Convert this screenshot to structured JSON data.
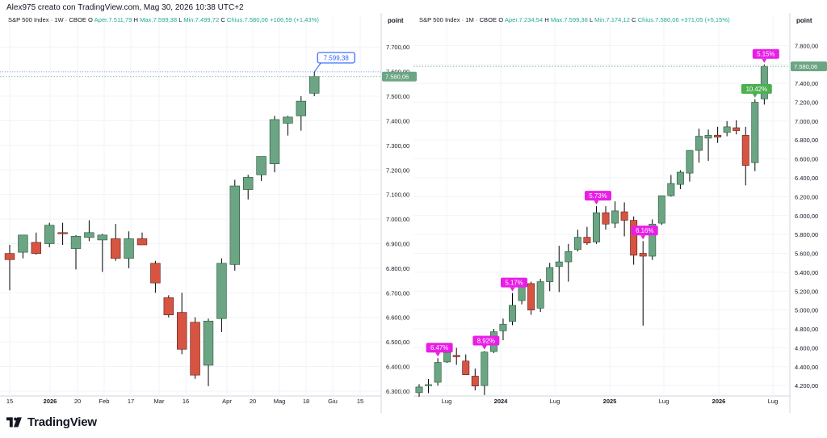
{
  "header": {
    "text": "Alex975 creato con TradingView.com, Mag 30, 2026 10:38 UTC+2"
  },
  "brand": {
    "text": "TradingView"
  },
  "colors": {
    "up": "#6ba583",
    "down": "#d75442",
    "up_border": "#225437",
    "down_border": "#5b1a13",
    "label_magenta": "#e91ee6",
    "label_green": "#4caf50",
    "price_tag": "#6ba583",
    "highlight_blue": "#2962ff"
  },
  "chart_data": [
    {
      "type": "candlestick",
      "title": "S&P 500 Index · 1W · CBOE",
      "ohlc_line": {
        "open_label": "O",
        "open": "Aper.7.511,79",
        "high_label": "H",
        "high": "Max.7.599,38",
        "low_label": "L",
        "low": "Min.7.499,72",
        "close_label": "C",
        "close": "Chius.7.580,06",
        "change": "+106,59 (+1,43%)"
      },
      "axis_title": "point",
      "y_ticks": [
        "7.700,00",
        "7.600,00",
        "7.500,00",
        "7.400,00",
        "7.300,00",
        "7.200,00",
        "7.100,00",
        "7.000,00",
        "6.900,00",
        "6.800,00",
        "6.700,00",
        "6.600,00",
        "6.500,00",
        "6.400,00",
        "6.300,00"
      ],
      "ylim": [
        6280,
        7760
      ],
      "x_ticks": [
        "15",
        "2026",
        "20",
        "Feb",
        "17",
        "Mar",
        "16",
        "Apr",
        "20",
        "Mag",
        "18",
        "Giu",
        "15"
      ],
      "candles": [
        {
          "o": 6860,
          "h": 6895,
          "l": 6710,
          "c": 6835
        },
        {
          "o": 6865,
          "h": 6935,
          "l": 6840,
          "c": 6935
        },
        {
          "o": 6905,
          "h": 6945,
          "l": 6855,
          "c": 6860
        },
        {
          "o": 6900,
          "h": 6985,
          "l": 6885,
          "c": 6975
        },
        {
          "o": 6945,
          "h": 6985,
          "l": 6895,
          "c": 6940
        },
        {
          "o": 6880,
          "h": 6935,
          "l": 6795,
          "c": 6930
        },
        {
          "o": 6925,
          "h": 6995,
          "l": 6910,
          "c": 6945
        },
        {
          "o": 6915,
          "h": 6940,
          "l": 6785,
          "c": 6935
        },
        {
          "o": 6920,
          "h": 6980,
          "l": 6830,
          "c": 6840
        },
        {
          "o": 6840,
          "h": 6950,
          "l": 6800,
          "c": 6920
        },
        {
          "o": 6920,
          "h": 6945,
          "l": 6895,
          "c": 6895
        },
        {
          "o": 6820,
          "h": 6830,
          "l": 6700,
          "c": 6740
        },
        {
          "o": 6680,
          "h": 6690,
          "l": 6600,
          "c": 6610
        },
        {
          "o": 6620,
          "h": 6700,
          "l": 6450,
          "c": 6470
        },
        {
          "o": 6580,
          "h": 6600,
          "l": 6350,
          "c": 6365
        },
        {
          "o": 6405,
          "h": 6595,
          "l": 6320,
          "c": 6585
        },
        {
          "o": 6595,
          "h": 6840,
          "l": 6540,
          "c": 6820
        },
        {
          "o": 6815,
          "h": 7160,
          "l": 6790,
          "c": 7135
        },
        {
          "o": 7120,
          "h": 7180,
          "l": 7080,
          "c": 7170
        },
        {
          "o": 7180,
          "h": 7255,
          "l": 7155,
          "c": 7255
        },
        {
          "o": 7225,
          "h": 7420,
          "l": 7190,
          "c": 7405
        },
        {
          "o": 7390,
          "h": 7420,
          "l": 7340,
          "c": 7415
        },
        {
          "o": 7420,
          "h": 7500,
          "l": 7360,
          "c": 7480
        },
        {
          "o": 7512,
          "h": 7599,
          "l": 7500,
          "c": 7580
        }
      ],
      "price_label": "7.580,06",
      "marker_label": "7.599,38"
    },
    {
      "type": "candlestick",
      "title": "S&P 500 Index · 1M · CBOE",
      "ohlc_line": {
        "open_label": "O",
        "open": "Aper.7.234,54",
        "high_label": "H",
        "high": "Max.7.599,38",
        "low_label": "L",
        "low": "Min.7.174,12",
        "close_label": "C",
        "close": "Chius.7.580,06",
        "change": "+371,05 (+5,15%)"
      },
      "axis_title": "point",
      "y_ticks": [
        "7.800,00",
        "7.600,00",
        "7.400,00",
        "7.200,00",
        "7.000,00",
        "6.800,00",
        "6.600,00",
        "6.400,00",
        "6.200,00",
        "6.000,00",
        "5.800,00",
        "5.600,00",
        "5.400,00",
        "5.200,00",
        "5.000,00",
        "4.800,00",
        "4.600,00",
        "4.400,00",
        "4.200,00"
      ],
      "ylim": [
        4090,
        7940
      ],
      "x_ticks": [
        "Lug",
        "2024",
        "Lug",
        "2025",
        "Lug",
        "2026",
        "Lug"
      ],
      "candles": [
        {
          "o": 4125,
          "h": 4215,
          "l": 4080,
          "c": 4185
        },
        {
          "o": 4200,
          "h": 4270,
          "l": 4120,
          "c": 4210
        },
        {
          "o": 4235,
          "h": 4490,
          "l": 4200,
          "c": 4445
        },
        {
          "o": 4450,
          "h": 4575,
          "l": 4440,
          "c": 4550
        },
        {
          "o": 4520,
          "h": 4600,
          "l": 4420,
          "c": 4505
        },
        {
          "o": 4460,
          "h": 4530,
          "l": 4330,
          "c": 4315
        },
        {
          "o": 4300,
          "h": 4380,
          "l": 4150,
          "c": 4195
        },
        {
          "o": 4200,
          "h": 4565,
          "l": 4100,
          "c": 4555
        },
        {
          "o": 4560,
          "h": 4800,
          "l": 4545,
          "c": 4770
        },
        {
          "o": 4780,
          "h": 4910,
          "l": 4680,
          "c": 4850
        },
        {
          "o": 4880,
          "h": 5180,
          "l": 4840,
          "c": 5050
        },
        {
          "o": 5100,
          "h": 5280,
          "l": 5060,
          "c": 5270
        },
        {
          "o": 5280,
          "h": 5300,
          "l": 4950,
          "c": 5000
        },
        {
          "o": 5020,
          "h": 5330,
          "l": 4980,
          "c": 5300
        },
        {
          "o": 5300,
          "h": 5500,
          "l": 5200,
          "c": 5450
        },
        {
          "o": 5460,
          "h": 5680,
          "l": 5190,
          "c": 5510
        },
        {
          "o": 5510,
          "h": 5700,
          "l": 5300,
          "c": 5620
        },
        {
          "o": 5640,
          "h": 5850,
          "l": 5620,
          "c": 5770
        },
        {
          "o": 5770,
          "h": 5880,
          "l": 5690,
          "c": 5710
        },
        {
          "o": 5720,
          "h": 6100,
          "l": 5700,
          "c": 6030
        },
        {
          "o": 6030,
          "h": 6100,
          "l": 5850,
          "c": 5910
        },
        {
          "o": 5920,
          "h": 6150,
          "l": 5870,
          "c": 6050
        },
        {
          "o": 6040,
          "h": 6140,
          "l": 5780,
          "c": 5950
        },
        {
          "o": 5950,
          "h": 5990,
          "l": 5480,
          "c": 5580
        },
        {
          "o": 5600,
          "h": 5730,
          "l": 4835,
          "c": 5570
        },
        {
          "o": 5570,
          "h": 5960,
          "l": 5530,
          "c": 5910
        },
        {
          "o": 5920,
          "h": 6200,
          "l": 5900,
          "c": 6210
        },
        {
          "o": 6210,
          "h": 6430,
          "l": 6200,
          "c": 6340
        },
        {
          "o": 6330,
          "h": 6480,
          "l": 6280,
          "c": 6460
        },
        {
          "o": 6450,
          "h": 6690,
          "l": 6360,
          "c": 6690
        },
        {
          "o": 6690,
          "h": 6920,
          "l": 6560,
          "c": 6840
        },
        {
          "o": 6820,
          "h": 6910,
          "l": 6580,
          "c": 6850
        },
        {
          "o": 6850,
          "h": 6940,
          "l": 6770,
          "c": 6830
        },
        {
          "o": 6880,
          "h": 7000,
          "l": 6840,
          "c": 6940
        },
        {
          "o": 6930,
          "h": 7010,
          "l": 6860,
          "c": 6900
        },
        {
          "o": 6850,
          "h": 6940,
          "l": 6320,
          "c": 6530
        },
        {
          "o": 6560,
          "h": 7230,
          "l": 6470,
          "c": 7200
        },
        {
          "o": 7235,
          "h": 7600,
          "l": 7175,
          "c": 7580
        }
      ],
      "markers": [
        {
          "candle": 2,
          "label": "6.47%",
          "color": "#e91ee6"
        },
        {
          "candle": 7,
          "label": "8.92%",
          "color": "#e91ee6"
        },
        {
          "candle": 10,
          "label": "5.17%",
          "color": "#e91ee6"
        },
        {
          "candle": 19,
          "label": "5.73%",
          "color": "#e91ee6"
        },
        {
          "candle": 24,
          "label": "6.16%",
          "color": "#e91ee6"
        },
        {
          "candle": 36,
          "label": "10.42%",
          "color": "#4caf50"
        },
        {
          "candle": 37,
          "label": "5.15%",
          "color": "#e91ee6"
        }
      ],
      "price_label": "7.580,06"
    }
  ]
}
